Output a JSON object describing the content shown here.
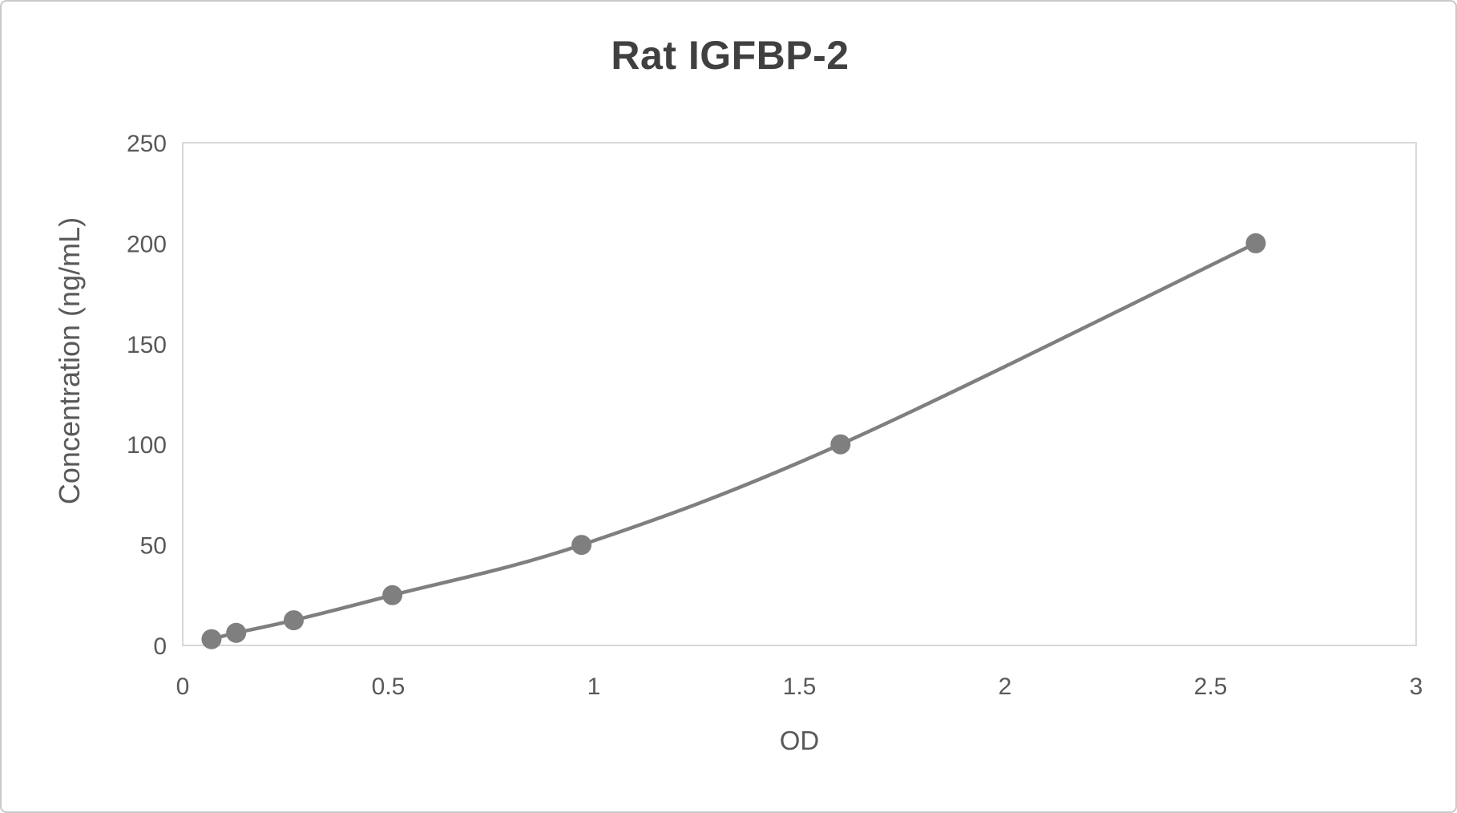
{
  "chart_data": {
    "type": "line",
    "subtype": "scatter-smooth-with-markers",
    "title": "Rat IGFBP-2",
    "xlabel": "OD",
    "ylabel": "Concentration (ng/mL)",
    "xlim": [
      0,
      3
    ],
    "ylim": [
      0,
      250
    ],
    "x_ticks": [
      0,
      0.5,
      1,
      1.5,
      2,
      2.5,
      3
    ],
    "x_tick_labels": [
      "0",
      "0.5",
      "1",
      "1.5",
      "2",
      "2.5",
      "3"
    ],
    "y_ticks": [
      0,
      50,
      100,
      150,
      200,
      250
    ],
    "y_tick_labels": [
      "0",
      "50",
      "100",
      "150",
      "200",
      "250"
    ],
    "grid": false,
    "legend": "none",
    "plot_border": true,
    "series": [
      {
        "x": [
          0.07,
          0.13,
          0.27,
          0.51,
          0.97,
          1.6,
          2.61
        ],
        "y": [
          3.125,
          6.25,
          12.5,
          25,
          50,
          100,
          200
        ],
        "marker": "circle"
      }
    ]
  },
  "colors": {
    "series": "#7f7f7f",
    "title_text": "#404040",
    "axis_text": "#595959",
    "plot_border": "#d9d9d9",
    "frame_border": "#c9c9c9",
    "background": "#ffffff"
  }
}
